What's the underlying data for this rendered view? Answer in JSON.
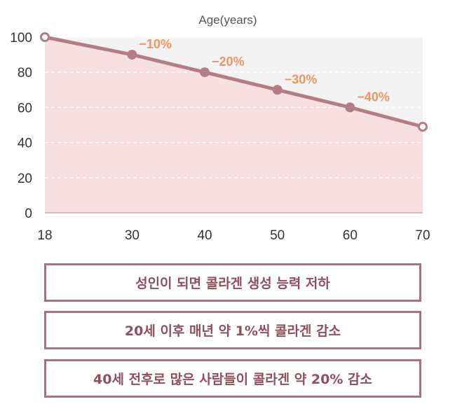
{
  "chart_data": {
    "type": "area",
    "title": "Age(years)",
    "x": [
      18,
      30,
      40,
      50,
      60,
      70
    ],
    "values": [
      100,
      90,
      80,
      70,
      60,
      49
    ],
    "point_labels": [
      "",
      "−10%",
      "−20%",
      "−30%",
      "−40%",
      ""
    ],
    "x_ticks": [
      "18",
      "30",
      "40",
      "50",
      "60",
      "70"
    ],
    "y_ticks": [
      "0",
      "20",
      "40",
      "60",
      "80",
      "100"
    ],
    "xlim": [
      18,
      70
    ],
    "ylim": [
      0,
      100
    ],
    "grid": true,
    "colors": {
      "line": "#b37d86",
      "fill": "#f7dfe2",
      "plot_bg": "#f3f3f3",
      "label": "#ef9560",
      "axis_text": "#333333"
    }
  },
  "notes": [
    "성인이 되면 콜라겐 생성 능력 저하",
    "20세 이후 매년 약 1%씩 콜라겐 감소",
    "40세 전후로 많은 사람들이 콜라겐 약 20% 감소"
  ]
}
